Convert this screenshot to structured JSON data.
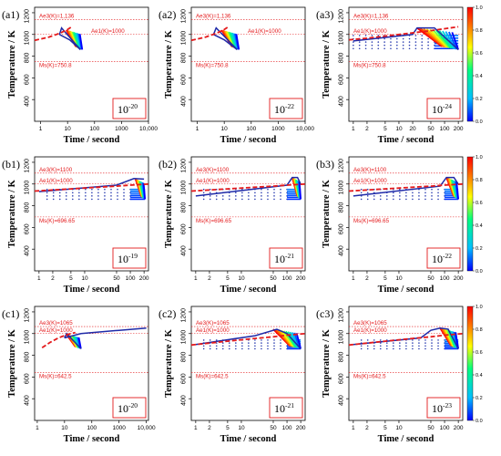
{
  "colors": {
    "ae_line": "#e41a1c",
    "cooling_curve": "#1f2aa8",
    "frame": "#000000",
    "colorbar": [
      "#0000ff",
      "#00bfff",
      "#00ff80",
      "#ffff00",
      "#ff8000",
      "#ff0000"
    ]
  },
  "colorbar_ticks": [
    "0.0",
    "0.2",
    "0.4",
    "0.6",
    "0.8",
    "1.0"
  ],
  "chart_data": [
    {
      "id": "a1",
      "type": "line",
      "panel_label": "(a1)",
      "xlabel": "Time / second",
      "ylabel": "Temperature / K",
      "xscale": "log",
      "xlim": [
        0.6,
        10000
      ],
      "ylim": [
        200,
        1250
      ],
      "xticks": [
        1,
        10,
        100,
        1000,
        10000
      ],
      "xtick_labels": [
        "1",
        "10",
        "100",
        "1000",
        "10,000"
      ],
      "yticks": [
        400,
        600,
        800,
        1000,
        1200
      ],
      "ae3_label": "Ae3(K)=1,136",
      "ae3": 1136,
      "ae1_label": "Ae1(K)=1000",
      "ae1": 1000,
      "ms_label": "Ms(K)=750.8",
      "ms": 750.8,
      "ae_curve": {
        "x": [
          0.6,
          2,
          5,
          10,
          15
        ],
        "y": [
          945,
          975,
          1010,
          1045,
          1075
        ]
      },
      "paths": [
        {
          "x": [
            5,
            6,
            7,
            30
          ],
          "y": [
            1000,
            1060,
            1040,
            860
          ]
        },
        {
          "x": [
            5,
            12,
            30
          ],
          "y": [
            1000,
            950,
            860
          ]
        }
      ],
      "fan": {
        "x0": 9,
        "x1": 35,
        "ytop": 1040,
        "ybot": 860
      },
      "dots": null,
      "annotation": "10",
      "exponent": "-20",
      "colorbar": false
    },
    {
      "id": "a2",
      "type": "line",
      "panel_label": "(a2)",
      "xlabel": "Time / second",
      "ylabel": "Temperature / K",
      "xscale": "log",
      "xlim": [
        0.6,
        10000
      ],
      "ylim": [
        200,
        1250
      ],
      "xticks": [
        1,
        10,
        100,
        1000,
        10000
      ],
      "xtick_labels": [
        "1",
        "10",
        "100",
        "1000",
        "10,000"
      ],
      "yticks": [
        400,
        600,
        800,
        1000,
        1200
      ],
      "ae3_label": "Ae3(K)=1,136",
      "ae3": 1136,
      "ae1_label": "Ae1(K)=1000",
      "ae1": 1000,
      "ms_label": "Ms(K)=750.8",
      "ms": 750.8,
      "ae_curve": {
        "x": [
          0.6,
          2,
          5,
          10,
          15
        ],
        "y": [
          945,
          975,
          1010,
          1045,
          1075
        ]
      },
      "paths": [
        {
          "x": [
            4,
            5,
            6,
            30
          ],
          "y": [
            1000,
            1060,
            1040,
            860
          ]
        },
        {
          "x": [
            4,
            10,
            30
          ],
          "y": [
            1000,
            950,
            860
          ]
        }
      ],
      "fan": {
        "x0": 8,
        "x1": 35,
        "ytop": 1040,
        "ybot": 860
      },
      "dots": null,
      "annotation": "10",
      "exponent": "-22",
      "colorbar": false
    },
    {
      "id": "a3",
      "type": "line",
      "panel_label": "(a3)",
      "xlabel": "Time / second",
      "ylabel": "Temperature / K",
      "xscale": "log",
      "xlim": [
        0.8,
        250
      ],
      "ylim": [
        200,
        1250
      ],
      "xticks": [
        1,
        2,
        5,
        10,
        20,
        50,
        100,
        200
      ],
      "xtick_labels": [
        "1",
        "2",
        "5",
        "10",
        "20",
        "50",
        "100",
        "200"
      ],
      "yticks": [
        400,
        600,
        800,
        1000,
        1200
      ],
      "ae3_label": "Ae3(K)=1,136",
      "ae3": 1136,
      "ae1_label": "Ae1(K)=1000",
      "ae1": 1000,
      "ms_label": "Ms(K)=750.8",
      "ms": 750.8,
      "ae_curve": {
        "x": [
          0.8,
          2,
          5,
          10,
          20,
          50,
          200
        ],
        "y": [
          950,
          965,
          985,
          1000,
          1015,
          1035,
          1070
        ]
      },
      "paths": [
        {
          "x": [
            1,
            20,
            25,
            60,
            200
          ],
          "y": [
            940,
            1000,
            1060,
            1060,
            860
          ]
        }
      ],
      "fan": {
        "x0": 25,
        "x1": 200,
        "ytop": 1060,
        "ybot": 860
      },
      "dots": {
        "x0": 1,
        "x1": 60,
        "ytop": 990,
        "ybot": 870,
        "rows": 5
      },
      "annotation": "10",
      "exponent": "-24",
      "colorbar": true
    },
    {
      "id": "b1",
      "type": "line",
      "panel_label": "(b1)",
      "xlabel": "Time / second",
      "ylabel": "Temperature / K",
      "xscale": "log",
      "xlim": [
        0.8,
        250
      ],
      "ylim": [
        200,
        1250
      ],
      "xticks": [
        1,
        2,
        5,
        10,
        50,
        100,
        200
      ],
      "xtick_labels": [
        "1",
        "2",
        "5",
        "10",
        "50",
        "100",
        "200"
      ],
      "yticks": [
        400,
        600,
        800,
        1000,
        1200
      ],
      "ae3_label": "Ae3(K)=1100",
      "ae3": 1100,
      "ae1_label": "Ae1(K)=1000",
      "ae1": 1000,
      "ms_label": "Ms(K)=696.65",
      "ms": 696.65,
      "ae_curve": {
        "x": [
          0.8,
          5,
          20,
          50,
          100,
          250
        ],
        "y": [
          935,
          955,
          970,
          980,
          990,
          1000
        ]
      },
      "paths": [
        {
          "x": [
            1,
            50,
            120,
            200
          ],
          "y": [
            930,
            990,
            1050,
            1045
          ]
        }
      ],
      "fan": {
        "x0": 130,
        "x1": 210,
        "ytop": 1045,
        "ybot": 860
      },
      "dots": {
        "x0": 1.5,
        "x1": 100,
        "ytop": 950,
        "ybot": 860,
        "rows": 4
      },
      "annotation": "10",
      "exponent": "-19",
      "colorbar": false
    },
    {
      "id": "b2",
      "type": "line",
      "panel_label": "(b2)",
      "xlabel": "Time / second",
      "ylabel": "Temperature / K",
      "xscale": "log",
      "xlim": [
        0.8,
        250
      ],
      "ylim": [
        200,
        1250
      ],
      "xticks": [
        1,
        2,
        5,
        10,
        50,
        100,
        200
      ],
      "xtick_labels": [
        "1",
        "2",
        "5",
        "10",
        "50",
        "100",
        "200"
      ],
      "yticks": [
        400,
        600,
        800,
        1000,
        1200
      ],
      "ae3_label": "Ae3(K)=1100",
      "ae3": 1100,
      "ae1_label": "Ae1(K)=1000",
      "ae1": 1000,
      "ms_label": "Ms(K)=696.65",
      "ms": 696.65,
      "ae_curve": {
        "x": [
          0.8,
          5,
          20,
          50,
          100,
          250
        ],
        "y": [
          935,
          955,
          970,
          980,
          990,
          1000
        ]
      },
      "paths": [
        {
          "x": [
            1,
            100,
            130,
            170,
            200
          ],
          "y": [
            890,
            990,
            1060,
            1060,
            1000
          ]
        }
      ],
      "fan": {
        "x0": 130,
        "x1": 200,
        "ytop": 1060,
        "ybot": 860
      },
      "dots": {
        "x0": 1.5,
        "x1": 100,
        "ytop": 950,
        "ybot": 860,
        "rows": 4
      },
      "annotation": "10",
      "exponent": "-21",
      "colorbar": false
    },
    {
      "id": "b3",
      "type": "line",
      "panel_label": "(b3)",
      "xlabel": "Time / second",
      "ylabel": "Temperature / K",
      "xscale": "log",
      "xlim": [
        0.8,
        250
      ],
      "ylim": [
        200,
        1250
      ],
      "xticks": [
        1,
        2,
        5,
        10,
        50,
        100,
        200
      ],
      "xtick_labels": [
        "1",
        "2",
        "5",
        "10",
        "50",
        "100",
        "200"
      ],
      "yticks": [
        400,
        600,
        800,
        1000,
        1200
      ],
      "ae3_label": "Ae3(K)=1100",
      "ae3": 1100,
      "ae1_label": "Ae1(K)=1000",
      "ae1": 1000,
      "ms_label": "Ms(K)=696.65",
      "ms": 696.65,
      "ae_curve": {
        "x": [
          0.8,
          5,
          20,
          50,
          100,
          250
        ],
        "y": [
          935,
          955,
          970,
          980,
          990,
          1000
        ]
      },
      "paths": [
        {
          "x": [
            1,
            80,
            110,
            160,
            200
          ],
          "y": [
            890,
            980,
            1060,
            1060,
            1000
          ]
        }
      ],
      "fan": {
        "x0": 110,
        "x1": 200,
        "ytop": 1060,
        "ybot": 860
      },
      "dots": {
        "x0": 1.5,
        "x1": 100,
        "ytop": 950,
        "ybot": 860,
        "rows": 4
      },
      "annotation": "10",
      "exponent": "-22",
      "colorbar": true
    },
    {
      "id": "c1",
      "type": "line",
      "panel_label": "(c1)",
      "xlabel": "Time / second",
      "ylabel": "Temperature / K",
      "xscale": "log",
      "xlim": [
        0.8,
        12000
      ],
      "ylim": [
        200,
        1250
      ],
      "xticks": [
        1,
        10,
        100,
        1000,
        10000
      ],
      "xtick_labels": [
        "1",
        "10",
        "100",
        "1000",
        "10,000"
      ],
      "yticks": [
        400,
        600,
        800,
        1000,
        1200
      ],
      "ae3_label": "Ae3(K)=1065",
      "ae3": 1065,
      "ae1_label": "Ae1(K)=1000",
      "ae1": 1000,
      "ms_label": "Ms(K)=642.5",
      "ms": 642.5,
      "ae_curve": {
        "x": [
          1.5,
          3,
          6,
          12,
          25
        ],
        "y": [
          870,
          920,
          960,
          990,
          1010
        ]
      },
      "paths": [
        {
          "x": [
            10,
            40,
            1000,
            10000
          ],
          "y": [
            960,
            1000,
            1030,
            1050
          ]
        },
        {
          "x": [
            10,
            12,
            40
          ],
          "y": [
            960,
            1000,
            860
          ]
        }
      ],
      "fan": {
        "x0": 12,
        "x1": 40,
        "ytop": 990,
        "ybot": 860
      },
      "dots": null,
      "annotation": "10",
      "exponent": "-20",
      "colorbar": false
    },
    {
      "id": "c2",
      "type": "line",
      "panel_label": "(c2)",
      "xlabel": "Time / second",
      "ylabel": "Temperature / K",
      "xscale": "log",
      "xlim": [
        0.8,
        250
      ],
      "ylim": [
        200,
        1250
      ],
      "xticks": [
        1,
        2,
        5,
        10,
        50,
        100,
        200
      ],
      "xtick_labels": [
        "1",
        "2",
        "5",
        "10",
        "50",
        "100",
        "200"
      ],
      "yticks": [
        400,
        600,
        800,
        1000,
        1200
      ],
      "ae3_label": "Ae3(K)=1065",
      "ae3": 1065,
      "ae1_label": "Ae1(K)=1000",
      "ae1": 1000,
      "ms_label": "Ms(K)=642.5",
      "ms": 642.5,
      "ae_curve": {
        "x": [
          0.8,
          5,
          20,
          50,
          100,
          250
        ],
        "y": [
          895,
          930,
          955,
          970,
          985,
          1000
        ]
      },
      "paths": [
        {
          "x": [
            1,
            20,
            60,
            100,
            200
          ],
          "y": [
            900,
            980,
            1040,
            1000,
            860
          ]
        }
      ],
      "fan": {
        "x0": 50,
        "x1": 200,
        "ytop": 1040,
        "ybot": 860
      },
      "dots": {
        "x0": 1.5,
        "x1": 100,
        "ytop": 940,
        "ybot": 860,
        "rows": 4
      },
      "annotation": "10",
      "exponent": "-21",
      "colorbar": false
    },
    {
      "id": "c3",
      "type": "line",
      "panel_label": "(c3)",
      "xlabel": "Time / second",
      "ylabel": "Temperature / K",
      "xscale": "log",
      "xlim": [
        0.8,
        250
      ],
      "ylim": [
        200,
        1250
      ],
      "xticks": [
        1,
        2,
        5,
        10,
        50,
        100,
        200
      ],
      "xtick_labels": [
        "1",
        "2",
        "5",
        "10",
        "50",
        "100",
        "200"
      ],
      "yticks": [
        400,
        600,
        800,
        1000,
        1200
      ],
      "ae3_label": "Ae3(K)=1065",
      "ae3": 1065,
      "ae1_label": "Ae1(K)=1000",
      "ae1": 1000,
      "ms_label": "Ms(K)=642.5",
      "ms": 642.5,
      "ae_curve": {
        "x": [
          0.8,
          5,
          20,
          50,
          100,
          250
        ],
        "y": [
          895,
          930,
          955,
          970,
          985,
          1000
        ]
      },
      "paths": [
        {
          "x": [
            1,
            30,
            50,
            80,
            120,
            200
          ],
          "y": [
            900,
            960,
            1030,
            1050,
            1040,
            860
          ]
        }
      ],
      "fan": {
        "x0": 80,
        "x1": 200,
        "ytop": 1050,
        "ybot": 860
      },
      "dots": {
        "x0": 1.5,
        "x1": 100,
        "ytop": 940,
        "ybot": 860,
        "rows": 4
      },
      "annotation": "10",
      "exponent": "-23",
      "colorbar": true
    }
  ]
}
